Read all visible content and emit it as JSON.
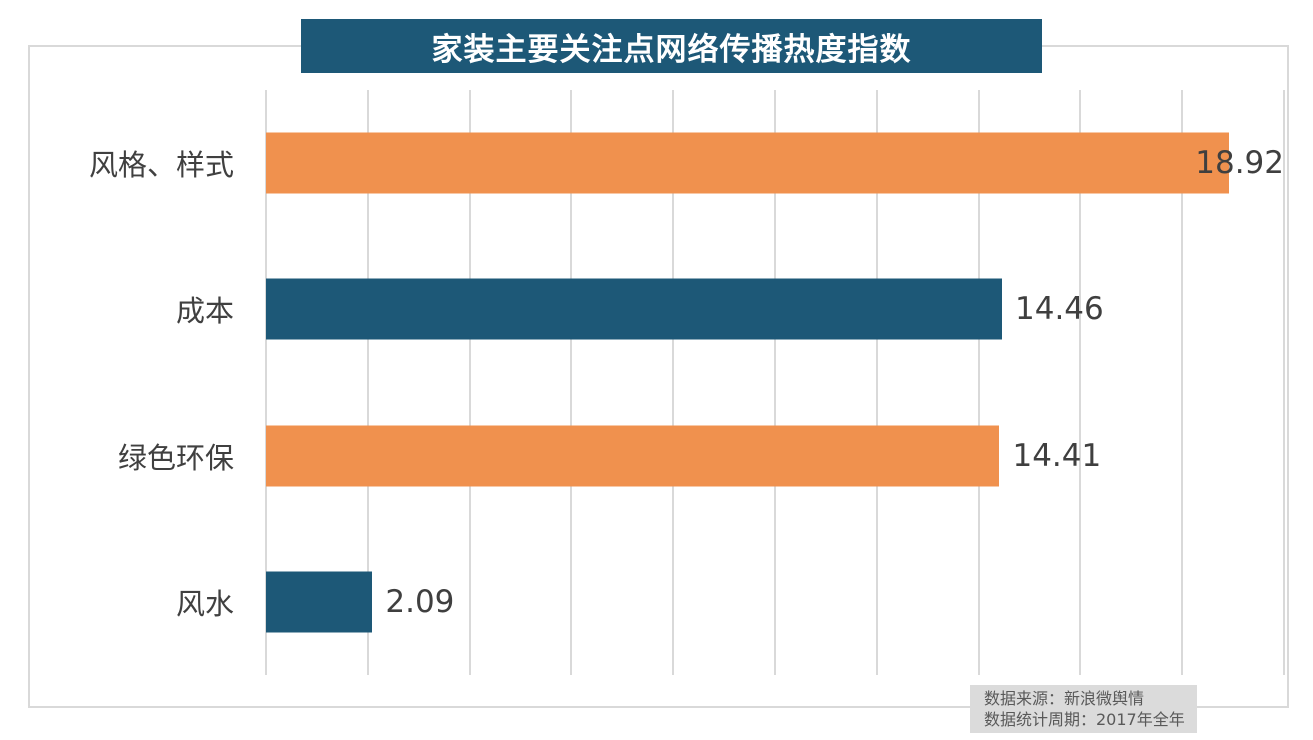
{
  "title_banner": {
    "text": "家装主要关注点网络传播热度指数",
    "bg_color": "#1D5877",
    "text_color": "#FFFFFF"
  },
  "chart_data": {
    "type": "bar",
    "orientation": "horizontal",
    "title": "家装主要关注点网络传播热度指数",
    "categories": [
      "风格、样式",
      "成本",
      "绿色环保",
      "风水"
    ],
    "values": [
      18.92,
      14.46,
      14.41,
      2.09
    ],
    "value_labels": [
      "18.92",
      "14.46",
      "14.41",
      "2.09"
    ],
    "bar_colors": [
      "#F0914E",
      "#1D5877",
      "#F0914E",
      "#1D5877"
    ],
    "xlim": [
      0,
      20
    ],
    "gridline_interval": 2,
    "grid": "vertical",
    "legend": "none"
  },
  "footnote": {
    "lines": [
      "数据来源：新浪微舆情",
      "数据统计周期：2017年全年"
    ],
    "bg_color": "#DBDBDB",
    "text_color": "#595959"
  },
  "colors": {
    "grid": "#D9D9D9",
    "frame_border": "#D9D9D9",
    "category_label": "#404040",
    "value_label": "#3F3F3F"
  }
}
